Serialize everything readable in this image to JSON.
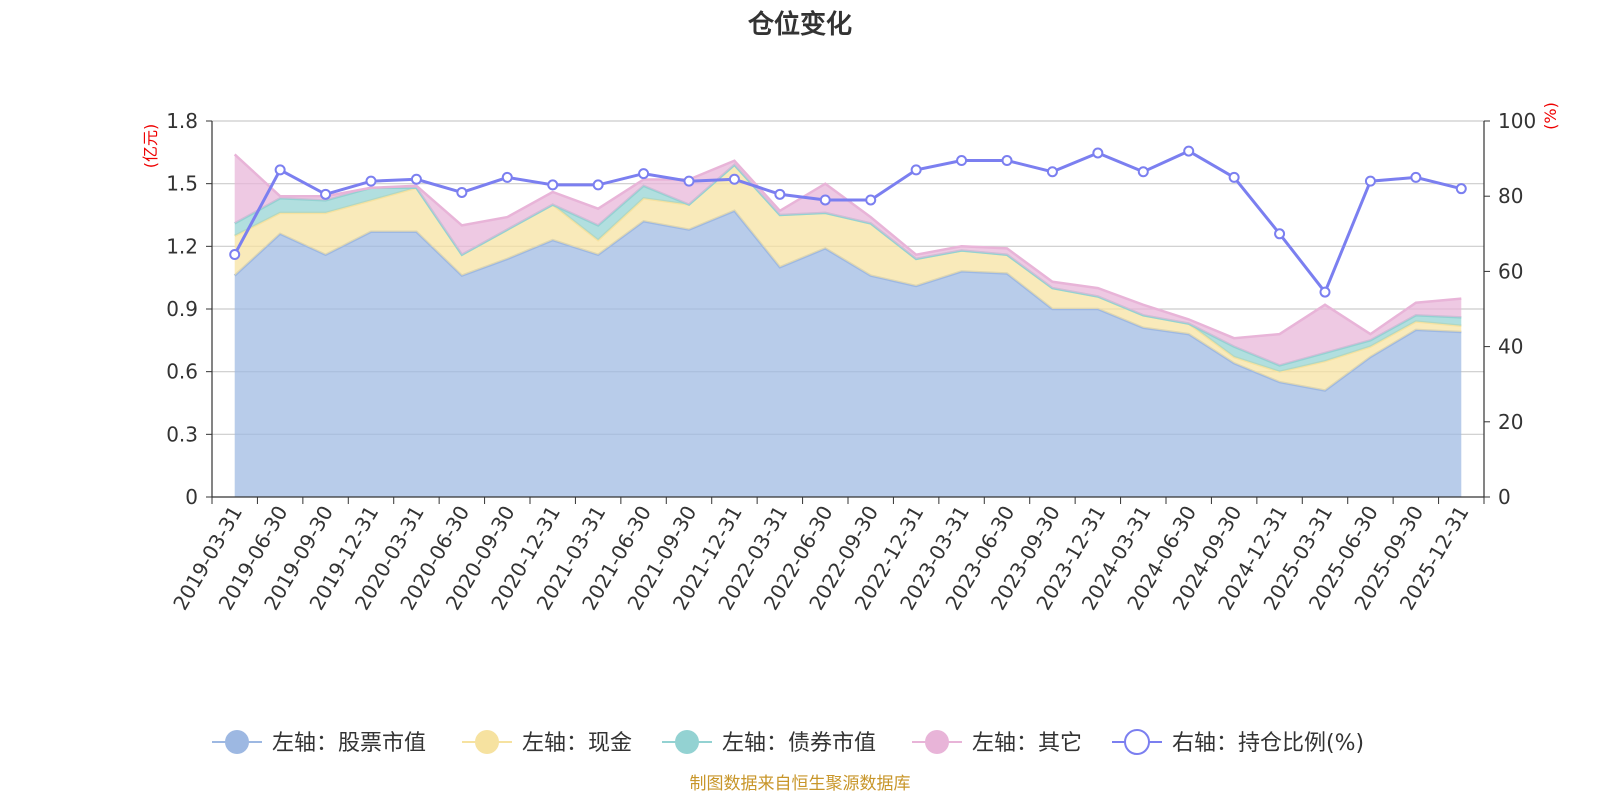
{
  "chart_data": {
    "type": "area",
    "title": "仓位变化",
    "source": "制图数据来自恒生聚源数据库",
    "left_axis": {
      "unit": "(亿元)",
      "min": 0,
      "max": 1.8,
      "ticks": [
        "0",
        "0.3",
        "0.6",
        "0.9",
        "1.2",
        "1.5",
        "1.8"
      ]
    },
    "right_axis": {
      "unit": "(%)",
      "min": 0,
      "max": 100,
      "ticks": [
        "0",
        "20",
        "40",
        "60",
        "80",
        "100"
      ]
    },
    "categories": [
      "2019-03-31",
      "2019-06-30",
      "2019-09-30",
      "2019-12-31",
      "2020-03-31",
      "2020-06-30",
      "2020-09-30",
      "2020-12-31",
      "2021-03-31",
      "2021-06-30",
      "2021-09-30",
      "2021-12-31",
      "2022-03-31",
      "2022-06-30",
      "2022-09-30",
      "2022-12-31",
      "2023-03-31",
      "2023-06-30",
      "2023-09-30",
      "2023-12-31",
      "2024-03-31",
      "2024-06-30",
      "2024-09-30",
      "2024-12-31",
      "2025-03-31",
      "2025-06-30",
      "2025-09-30",
      "2025-12-31"
    ],
    "series": [
      {
        "name": "左轴：股票市值",
        "axis": "left",
        "color": "#9db8e2",
        "values": [
          1.06,
          1.26,
          1.16,
          1.27,
          1.27,
          1.06,
          1.14,
          1.23,
          1.16,
          1.32,
          1.28,
          1.37,
          1.1,
          1.19,
          1.06,
          1.01,
          1.08,
          1.07,
          0.9,
          0.9,
          0.81,
          0.78,
          0.64,
          0.55,
          0.51,
          0.67,
          0.8,
          0.79
        ]
      },
      {
        "name": "左轴：现金",
        "axis": "left",
        "color": "#f6e2a0",
        "values": [
          0.19,
          0.1,
          0.2,
          0.15,
          0.21,
          0.1,
          0.14,
          0.17,
          0.07,
          0.11,
          0.12,
          0.22,
          0.25,
          0.17,
          0.25,
          0.13,
          0.1,
          0.09,
          0.1,
          0.06,
          0.06,
          0.05,
          0.03,
          0.05,
          0.14,
          0.05,
          0.04,
          0.03
        ]
      },
      {
        "name": "左轴：债券市值",
        "axis": "left",
        "color": "#93d2d2",
        "values": [
          0.06,
          0.07,
          0.06,
          0.06,
          0.0,
          0.0,
          0.0,
          0.0,
          0.07,
          0.06,
          0.0,
          0.0,
          0.0,
          0.0,
          0.0,
          0.0,
          0.0,
          0.0,
          0.0,
          0.0,
          0.0,
          0.0,
          0.05,
          0.03,
          0.04,
          0.03,
          0.03,
          0.04
        ]
      },
      {
        "name": "左轴：其它",
        "axis": "left",
        "color": "#e8b4d8",
        "values": [
          0.33,
          0.01,
          0.02,
          0.0,
          0.01,
          0.14,
          0.06,
          0.06,
          0.08,
          0.03,
          0.12,
          0.02,
          0.02,
          0.14,
          0.03,
          0.02,
          0.02,
          0.03,
          0.03,
          0.04,
          0.05,
          0.02,
          0.04,
          0.15,
          0.23,
          0.03,
          0.06,
          0.09
        ]
      },
      {
        "name": "右轴：持仓比例(%)",
        "axis": "right",
        "color": "#7b7ff0",
        "values": [
          64.5,
          87,
          80.5,
          84,
          84.5,
          81,
          85,
          83,
          83,
          86,
          84,
          84.5,
          80.5,
          79,
          79,
          87,
          89.5,
          89.5,
          86.5,
          91.5,
          86.5,
          92,
          85,
          70,
          54.5,
          84,
          85,
          82
        ]
      }
    ]
  }
}
